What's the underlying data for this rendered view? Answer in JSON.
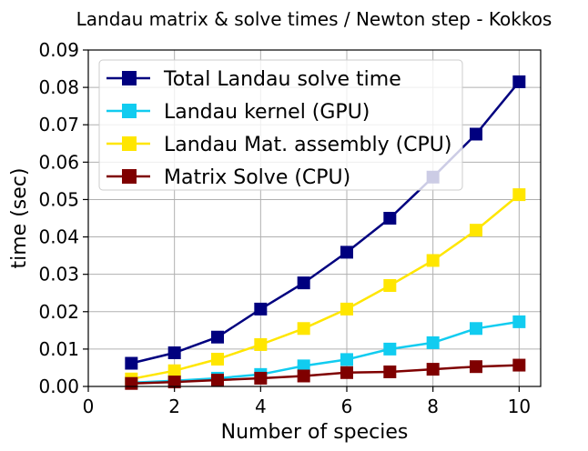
{
  "chart_data": {
    "type": "line",
    "title": "Landau matrix & solve times / Newton step - Kokkos",
    "xlabel": "Number of species",
    "ylabel": "time (sec)",
    "xlim": [
      0,
      10.5
    ],
    "ylim": [
      0,
      0.09
    ],
    "x_ticks": [
      0,
      2,
      4,
      6,
      8,
      10
    ],
    "x_tick_labels": [
      "0",
      "2",
      "4",
      "6",
      "8",
      "10"
    ],
    "y_ticks": [
      0,
      0.01,
      0.02,
      0.03,
      0.04,
      0.05,
      0.06,
      0.07,
      0.08,
      0.09
    ],
    "y_tick_labels": [
      "0.00",
      "0.01",
      "0.02",
      "0.03",
      "0.04",
      "0.05",
      "0.06",
      "0.07",
      "0.08",
      "0.09"
    ],
    "grid": true,
    "legend_position": "upper-left",
    "marker": "square",
    "x": [
      1,
      2,
      3,
      4,
      5,
      6,
      7,
      8,
      9,
      10
    ],
    "series": [
      {
        "name": "Total Landau solve time",
        "color": "#00007f",
        "values": [
          0.0062,
          0.009,
          0.0132,
          0.0207,
          0.0277,
          0.0359,
          0.045,
          0.056,
          0.0675,
          0.0815
        ]
      },
      {
        "name": "Landau kernel (GPU)",
        "color": "#11ccf0",
        "values": [
          0.001,
          0.0015,
          0.0022,
          0.0032,
          0.0055,
          0.0072,
          0.01,
          0.0117,
          0.0155,
          0.0173
        ]
      },
      {
        "name": "Landau Mat. assembly (CPU)",
        "color": "#ffe600",
        "values": [
          0.002,
          0.0042,
          0.0073,
          0.0112,
          0.0155,
          0.0207,
          0.027,
          0.0337,
          0.0418,
          0.0513
        ]
      },
      {
        "name": "Matrix Solve (CPU)",
        "color": "#7f0000",
        "values": [
          0.0008,
          0.0012,
          0.0017,
          0.0022,
          0.0028,
          0.0037,
          0.0039,
          0.0046,
          0.0053,
          0.0057
        ]
      }
    ]
  }
}
